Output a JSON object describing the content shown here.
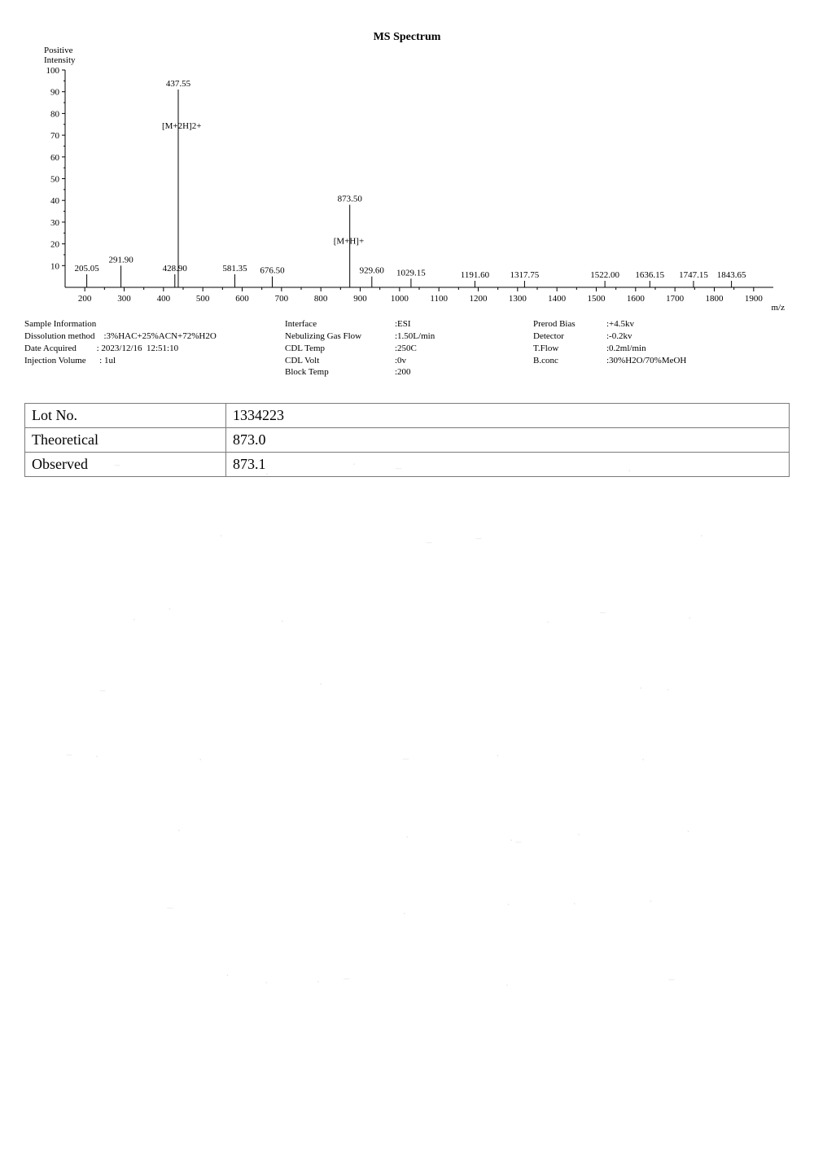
{
  "title": "MS Spectrum",
  "yaxis_header": "Positive\nIntensity",
  "xaxis_label": "m/z",
  "spectrum": {
    "xlim": [
      150,
      1950
    ],
    "ylim": [
      0,
      100
    ],
    "yticks": [
      10,
      20,
      30,
      40,
      50,
      60,
      70,
      80,
      90,
      100
    ],
    "xticks": [
      200,
      300,
      400,
      500,
      600,
      700,
      800,
      900,
      1000,
      1100,
      1200,
      1300,
      1400,
      1500,
      1600,
      1700,
      1800,
      1900
    ],
    "axis_color": "#000000",
    "tick_fontsize": 11,
    "label_fontsize": 11,
    "peak_color": "#000000",
    "peak_linewidth": 1,
    "peaks": [
      {
        "mz": 205.05,
        "h": 6,
        "label": "205.05"
      },
      {
        "mz": 291.9,
        "h": 10,
        "label": "291.90"
      },
      {
        "mz": 428.9,
        "h": 6,
        "label": "428.90"
      },
      {
        "mz": 437.55,
        "h": 91,
        "label": "437.55",
        "annotation": "[M+2H]2+"
      },
      {
        "mz": 581.35,
        "h": 6,
        "label": "581.35"
      },
      {
        "mz": 676.5,
        "h": 5,
        "label": "676.50"
      },
      {
        "mz": 873.5,
        "h": 38,
        "label": "873.50",
        "annotation": "[M+H]+"
      },
      {
        "mz": 929.6,
        "h": 5,
        "label": "929.60"
      },
      {
        "mz": 1029.15,
        "h": 4,
        "label": "1029.15"
      },
      {
        "mz": 1191.6,
        "h": 3,
        "label": "1191.60"
      },
      {
        "mz": 1317.75,
        "h": 3,
        "label": "1317.75"
      },
      {
        "mz": 1522.0,
        "h": 3,
        "label": "1522.00"
      },
      {
        "mz": 1636.15,
        "h": 3,
        "label": "1636.15"
      },
      {
        "mz": 1747.15,
        "h": 3,
        "label": "1747.15"
      },
      {
        "mz": 1843.65,
        "h": 3,
        "label": "1843.65"
      }
    ]
  },
  "info": {
    "col1_head": "Sample Information",
    "col1": [
      [
        "Dissolution method",
        ":3%HAC+25%ACN+72%H2O"
      ],
      [
        "Date Acquired",
        ": 2023/12/16  12:51:10"
      ],
      [
        "Injection Volume",
        ": 1ul"
      ]
    ],
    "col2": [
      [
        "Interface",
        ":ESI"
      ],
      [
        "Nebulizing Gas Flow",
        ":1.50L/min"
      ],
      [
        "CDL Temp",
        ":250C"
      ],
      [
        "CDL Volt",
        ":0v"
      ],
      [
        "Block Temp",
        ":200"
      ]
    ],
    "col3": [
      [
        "Prerod Bias",
        ":+4.5kv"
      ],
      [
        "Detector",
        ":-0.2kv"
      ],
      [
        "T.Flow",
        ":0.2ml/min"
      ],
      [
        "B.conc",
        ":30%H2O/70%MeOH"
      ]
    ]
  },
  "table": {
    "rows": [
      [
        "Lot No.",
        "1334223"
      ],
      [
        "Theoretical",
        "873.0"
      ],
      [
        "Observed",
        "873.1"
      ]
    ]
  }
}
